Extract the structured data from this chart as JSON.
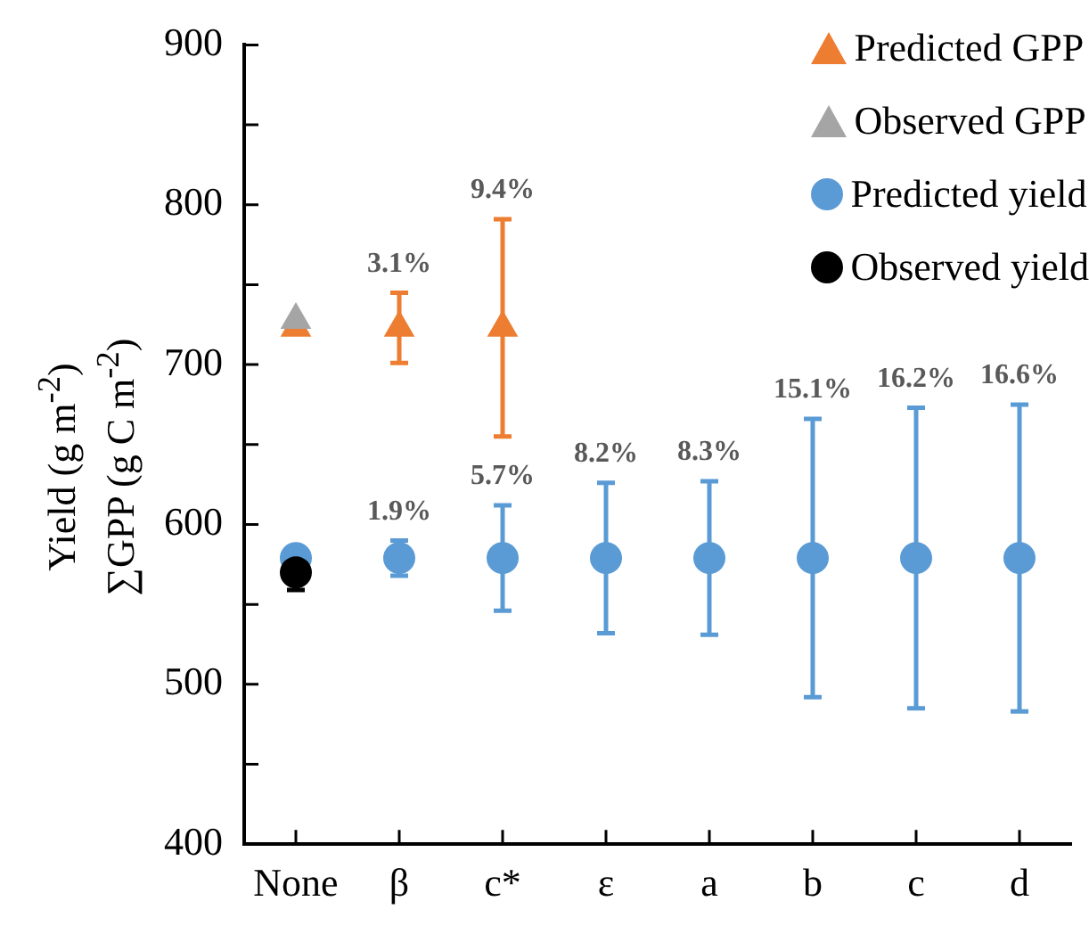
{
  "chart_data": {
    "type": "scatter",
    "ylabel": "Yield (g m$^{-2}$)\n∑GPP (g C m$^{-2}$)",
    "categories": [
      "None",
      "β",
      "c*",
      "ε",
      "a",
      "b",
      "c",
      "d"
    ],
    "ylim": [
      400,
      900
    ],
    "yticks": [
      400,
      {
        "value": 450,
        "label": null
      },
      500,
      {
        "value": 550,
        "label": null
      },
      600,
      {
        "value": 650,
        "label": null
      },
      700,
      {
        "value": 750,
        "label": null
      },
      800,
      {
        "value": 850,
        "label": null
      },
      900
    ],
    "grid": false,
    "legend": "top right",
    "series": [
      {
        "name": "Predicted GPP",
        "color": "#ed7d31",
        "marker": "triangle",
        "values": [
          723,
          723,
          723,
          null,
          null,
          null,
          null,
          null
        ],
        "errors": [
          null,
          22,
          68,
          null,
          null,
          null,
          null,
          null
        ]
      },
      {
        "name": "Observed GPP",
        "color": "#a5a5a5",
        "marker": "triangle",
        "values": [
          728,
          null,
          null,
          null,
          null,
          null,
          null,
          null
        ]
      },
      {
        "name": "Predicted yield",
        "color": "#5b9bd5",
        "marker": "circle",
        "values": [
          579,
          579,
          579,
          579,
          579,
          579,
          579,
          579
        ],
        "errors": [
          null,
          11,
          33,
          47,
          48,
          87,
          94,
          96
        ]
      },
      {
        "name": "Observed yield",
        "color": "#000000",
        "marker": "circle",
        "values": [
          570,
          null,
          null,
          null,
          null,
          null,
          null,
          null
        ],
        "errors": [
          11,
          null,
          null,
          null,
          null,
          null,
          null,
          null
        ]
      }
    ],
    "annotations": [
      {
        "text": "3.1%",
        "x": "β",
        "y": 745
      },
      {
        "text": "9.4%",
        "x": "c*",
        "y": 791
      },
      {
        "text": "1.9%",
        "x": "β",
        "y": 590
      },
      {
        "text": "5.7%",
        "x": "c*",
        "y": 612
      },
      {
        "text": "8.2%",
        "x": "ε",
        "y": 626
      },
      {
        "text": "8.3%",
        "x": "a",
        "y": 627
      },
      {
        "text": "15.1%",
        "x": "b",
        "y": 666
      },
      {
        "text": "16.2%",
        "x": "c",
        "y": 673
      },
      {
        "text": "16.6%",
        "x": "d",
        "y": 675
      }
    ]
  }
}
